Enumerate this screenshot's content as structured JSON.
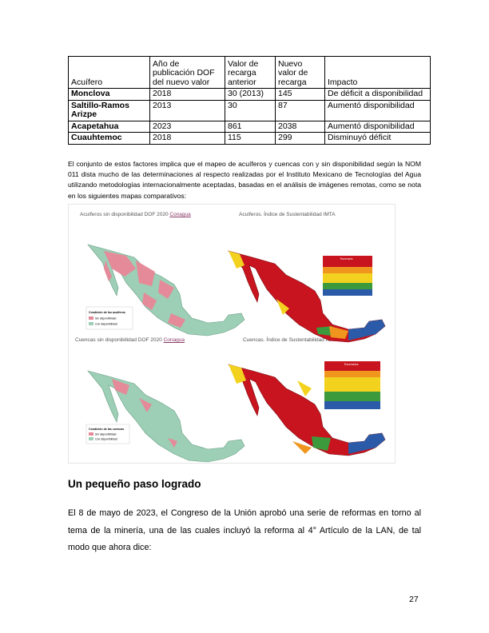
{
  "table": {
    "headers": [
      "Acuífero",
      "Año de publicación DOF del nuevo valor",
      "Valor de recarga anterior",
      "Nuevo valor de recarga",
      "Impacto"
    ],
    "rows": [
      [
        "Monclova",
        "2018",
        "30 (2013)",
        "145",
        "De déficit a disponibilidad"
      ],
      [
        "Saltillo-Ramos Arizpe",
        "2013",
        "30",
        "87",
        "Aumentó disponibilidad"
      ],
      [
        "Acapetahua",
        "2023",
        "861",
        "2038",
        "Aumentó disponibilidad"
      ],
      [
        "Cuauhtemoc",
        "2018",
        "115",
        "299",
        "Disminuyó déficit"
      ]
    ]
  },
  "paragraph1": "El conjunto de estos factores implica que el mapeo de acuíferos y cuencas con y sin disponibilidad según la NOM 011 dista mucho de las determinaciones al respecto realizadas por el Instituto Mexicano de Tecnologías del Agua utilizando metodologías internacionalmente aceptadas, basadas en el análisis de imágenes remotas, como se nota en los siguientes mapas comparativos:",
  "maps": {
    "top_left_title": "Acuíferos sin disponibilidad DOF 2020",
    "top_left_title_org": "Conagua",
    "top_right_title": "Acuíferos. Índice de Sustentabilidad IMTA",
    "bottom_left_title": "Cuencas sin disponibilidad DOF 2020",
    "bottom_left_title_org": "Conagua",
    "bottom_right_title": "Cuencas. Índice de Sustentabilidad IMTA",
    "legend_top_heading": "Condición de los acuíferos",
    "legend_bottom_heading": "Condición de las cuencas",
    "legend_sin": "Sin disponibilidad",
    "legend_con": "Con disponibilidad",
    "imta_legend_heading": "Escenario",
    "imta_legend_heading_bottom": "Escenarios",
    "colors": {
      "sin_disponibilidad": "#e58a99",
      "con_disponibilidad": "#9ccfb5",
      "imta_red": "#c8141e",
      "imta_orange": "#f0961e",
      "imta_yellow": "#f2d21e",
      "imta_green": "#3c9a3c",
      "imta_blue": "#2a5aa8"
    }
  },
  "section_title": "Un pequeño paso logrado",
  "paragraph2": "El 8 de mayo de 2023, el Congreso de la Unión aprobó una serie de reformas en torno al tema de la minería, una de las cuales incluyó la reforma al 4° Artículo de la LAN, de tal modo que ahora dice:",
  "page_number": "27"
}
